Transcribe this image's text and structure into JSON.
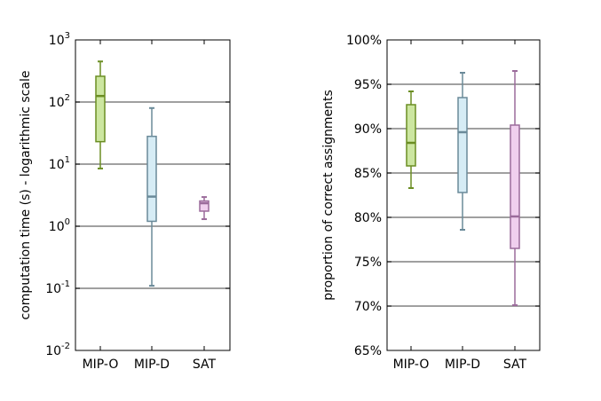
{
  "chart_data": [
    {
      "type": "box",
      "ylabel": "computation time (s) - logarithmic scale",
      "yscale": "log",
      "ylim": [
        0.01,
        1000
      ],
      "yticks": [
        {
          "value": 0.01,
          "base": "10",
          "exp": "-2"
        },
        {
          "value": 0.1,
          "base": "10",
          "exp": "-1"
        },
        {
          "value": 1,
          "base": "10",
          "exp": "0"
        },
        {
          "value": 10,
          "base": "10",
          "exp": "1"
        },
        {
          "value": 100,
          "base": "10",
          "exp": "2"
        },
        {
          "value": 1000,
          "base": "10",
          "exp": "3"
        }
      ],
      "gridlines": [
        0.1,
        1,
        10,
        100
      ],
      "categories": [
        "MIP-O",
        "MIP-D",
        "SAT"
      ],
      "boxes": [
        {
          "whislo": 8.5,
          "q1": 23,
          "med": 125,
          "q3": 260,
          "whishi": 450,
          "color": "#6b8e23",
          "fill": "#cce6a0"
        },
        {
          "whislo": 0.11,
          "q1": 1.2,
          "med": 3.0,
          "q3": 28,
          "whishi": 80,
          "color": "#6a8a99",
          "fill": "#d6ecf5"
        },
        {
          "whislo": 1.3,
          "q1": 1.75,
          "med": 2.35,
          "q3": 2.55,
          "whishi": 2.95,
          "color": "#9b6b9b",
          "fill": "#f0cfee"
        }
      ]
    },
    {
      "type": "box",
      "ylabel": "proportion of correct assignments",
      "yscale": "linear",
      "ylim": [
        65,
        100
      ],
      "yticks": [
        {
          "value": 65,
          "label": "65%"
        },
        {
          "value": 70,
          "label": "70%"
        },
        {
          "value": 75,
          "label": "75%"
        },
        {
          "value": 80,
          "label": "80%"
        },
        {
          "value": 85,
          "label": "85%"
        },
        {
          "value": 90,
          "label": "90%"
        },
        {
          "value": 95,
          "label": "95%"
        },
        {
          "value": 100,
          "label": "100%"
        }
      ],
      "gridlines": [
        70,
        75,
        80,
        85,
        90,
        95
      ],
      "categories": [
        "MIP-O",
        "MIP-D",
        "SAT"
      ],
      "boxes": [
        {
          "whislo": 83.3,
          "q1": 85.8,
          "med": 88.4,
          "q3": 92.7,
          "whishi": 94.2,
          "color": "#6b8e23",
          "fill": "#cce6a0"
        },
        {
          "whislo": 78.6,
          "q1": 82.8,
          "med": 89.6,
          "q3": 93.5,
          "whishi": 96.3,
          "color": "#6a8a99",
          "fill": "#d6ecf5"
        },
        {
          "whislo": 70.1,
          "q1": 76.5,
          "med": 80.1,
          "q3": 90.4,
          "whishi": 96.5,
          "color": "#9b6b9b",
          "fill": "#f0cfee"
        }
      ]
    }
  ]
}
